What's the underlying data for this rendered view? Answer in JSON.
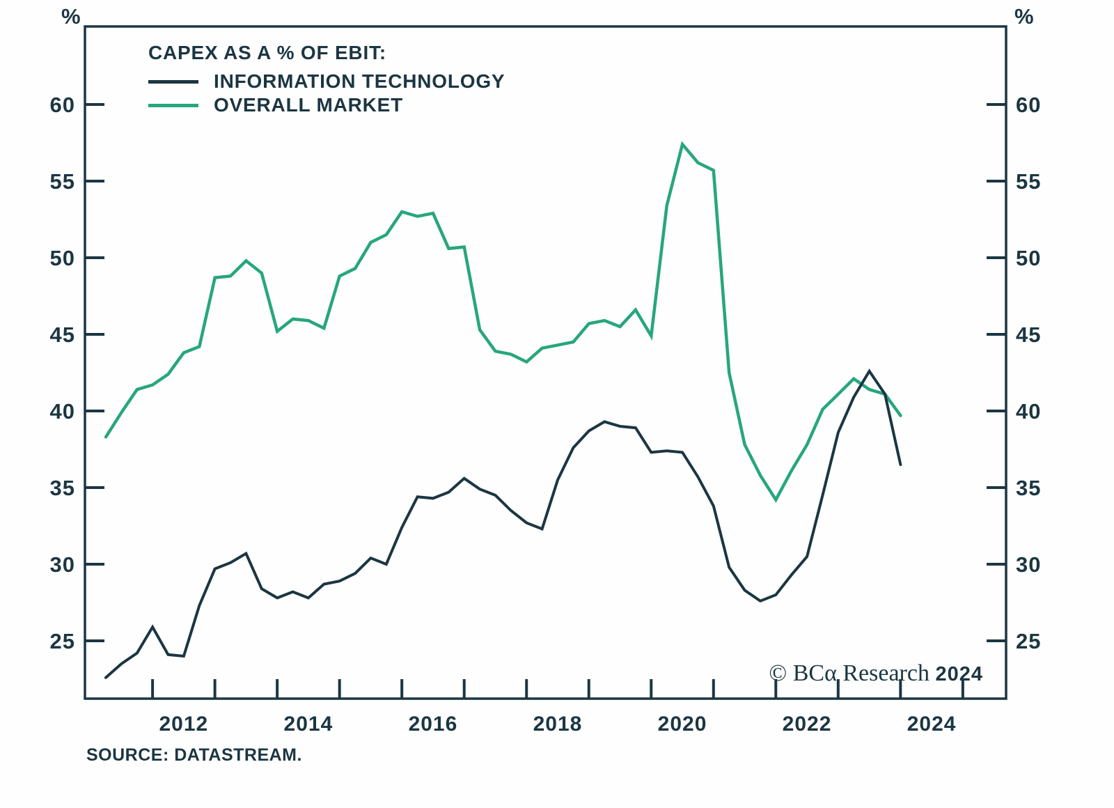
{
  "percent_symbol": "%",
  "legend": {
    "title": "CAPEX AS A % OF EBIT:",
    "series": [
      {
        "label": "INFORMATION TECHNOLOGY",
        "color": "#1b3642"
      },
      {
        "label": "OVERALL MARKET",
        "color": "#27a67e"
      }
    ]
  },
  "watermark": {
    "copyright": "© BCα Research ",
    "year": "2024"
  },
  "source": "SOURCE: DATASTREAM.",
  "chart_data": {
    "type": "line",
    "title": "CAPEX AS A % OF EBIT",
    "ylabel": "%",
    "frequency": "quarterly",
    "x_start": "2011-Q1",
    "x_end": "2023-Q4",
    "ylim": [
      21,
      65
    ],
    "yticks": [
      25,
      30,
      35,
      40,
      45,
      50,
      55,
      60
    ],
    "yticks_both_sides": true,
    "grid": false,
    "legend_position": "top-left-inside",
    "xtick_years": [
      2012,
      2013,
      2014,
      2015,
      2016,
      2017,
      2018,
      2019,
      2020,
      2021,
      2022,
      2023,
      2024,
      2025
    ],
    "xlabel_years": [
      2012,
      2014,
      2016,
      2018,
      2020,
      2022,
      2024
    ],
    "quarters": [
      "2011Q1",
      "2011Q2",
      "2011Q3",
      "2011Q4",
      "2012Q1",
      "2012Q2",
      "2012Q3",
      "2012Q4",
      "2013Q1",
      "2013Q2",
      "2013Q3",
      "2013Q4",
      "2014Q1",
      "2014Q2",
      "2014Q3",
      "2014Q4",
      "2015Q1",
      "2015Q2",
      "2015Q3",
      "2015Q4",
      "2016Q1",
      "2016Q2",
      "2016Q3",
      "2016Q4",
      "2017Q1",
      "2017Q2",
      "2017Q3",
      "2017Q4",
      "2018Q1",
      "2018Q2",
      "2018Q3",
      "2018Q4",
      "2019Q1",
      "2019Q2",
      "2019Q3",
      "2019Q4",
      "2020Q1",
      "2020Q2",
      "2020Q3",
      "2020Q4",
      "2021Q1",
      "2021Q2",
      "2021Q3",
      "2021Q4",
      "2022Q1",
      "2022Q2",
      "2022Q3",
      "2022Q4",
      "2023Q1",
      "2023Q2",
      "2023Q3",
      "2023Q4"
    ],
    "series": [
      {
        "name": "INFORMATION TECHNOLOGY",
        "color": "#1b3642",
        "values": [
          22.6,
          23.5,
          24.2,
          25.9,
          24.1,
          24.0,
          27.3,
          29.7,
          30.1,
          30.7,
          28.4,
          27.8,
          28.2,
          27.8,
          28.7,
          28.9,
          29.4,
          30.4,
          30.0,
          32.4,
          34.4,
          34.3,
          34.7,
          35.6,
          34.9,
          34.5,
          33.5,
          32.7,
          32.3,
          35.5,
          37.6,
          38.7,
          39.3,
          39.0,
          38.9,
          37.3,
          37.4,
          37.3,
          35.7,
          33.8,
          29.8,
          28.3,
          27.6,
          28.0,
          29.3,
          30.5,
          34.5,
          38.6,
          40.9,
          42.6,
          41.1,
          36.5
        ]
      },
      {
        "name": "OVERALL MARKET",
        "color": "#27a67e",
        "values": [
          38.3,
          39.9,
          41.4,
          41.7,
          42.4,
          43.8,
          44.2,
          48.7,
          48.8,
          49.8,
          49.0,
          45.2,
          46.0,
          45.9,
          45.4,
          48.8,
          49.3,
          51.0,
          51.5,
          53.0,
          52.7,
          52.9,
          50.6,
          50.7,
          45.3,
          43.9,
          43.7,
          43.2,
          44.1,
          44.3,
          44.5,
          45.7,
          45.9,
          45.5,
          46.6,
          44.9,
          53.4,
          57.4,
          56.2,
          55.7,
          42.5,
          37.8,
          35.8,
          34.2,
          36.1,
          37.8,
          40.1,
          41.1,
          42.1,
          41.4,
          41.1,
          39.7
        ]
      }
    ]
  }
}
